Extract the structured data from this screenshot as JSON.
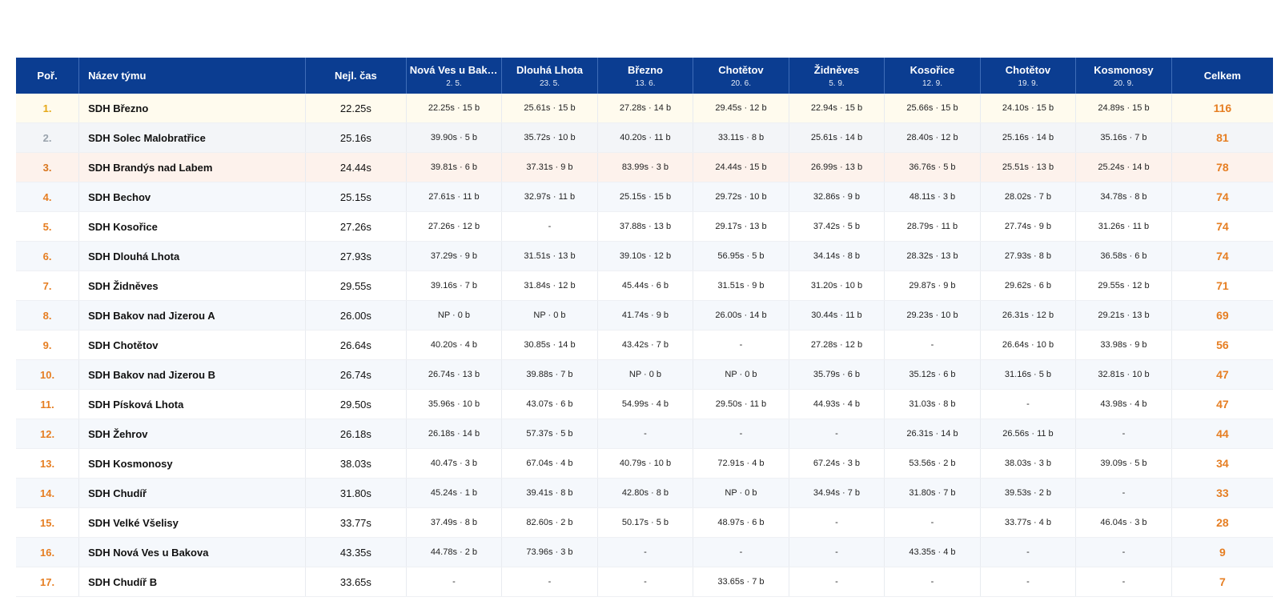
{
  "table": {
    "headers": {
      "rank": "Poř.",
      "team": "Název týmu",
      "best": "Nejl. čas",
      "total": "Celkem"
    },
    "events": [
      {
        "name": "Nová Ves u Bakova",
        "date": "2. 5."
      },
      {
        "name": "Dlouhá Lhota",
        "date": "23. 5."
      },
      {
        "name": "Březno",
        "date": "13. 6."
      },
      {
        "name": "Chotětov",
        "date": "20. 6."
      },
      {
        "name": "Židněves",
        "date": "5. 9."
      },
      {
        "name": "Kosořice",
        "date": "12. 9."
      },
      {
        "name": "Chotětov",
        "date": "19. 9."
      },
      {
        "name": "Kosmonosy",
        "date": "20. 9."
      }
    ],
    "rows": [
      {
        "rank": "1.",
        "team": "SDH Březno",
        "best": "22.25s",
        "results": [
          "22.25s · 15 b",
          "25.61s · 15 b",
          "27.28s · 14 b",
          "29.45s · 12 b",
          "22.94s · 15 b",
          "25.66s · 15 b",
          "24.10s · 15 b",
          "24.89s · 15 b"
        ],
        "total": "116"
      },
      {
        "rank": "2.",
        "team": "SDH Solec Malobratřice",
        "best": "25.16s",
        "results": [
          "39.90s · 5 b",
          "35.72s · 10 b",
          "40.20s · 11 b",
          "33.11s · 8 b",
          "25.61s · 14 b",
          "28.40s · 12 b",
          "25.16s · 14 b",
          "35.16s · 7 b"
        ],
        "total": "81"
      },
      {
        "rank": "3.",
        "team": "SDH Brandýs nad Labem",
        "best": "24.44s",
        "results": [
          "39.81s · 6 b",
          "37.31s · 9 b",
          "83.99s · 3 b",
          "24.44s · 15 b",
          "26.99s · 13 b",
          "36.76s · 5 b",
          "25.51s · 13 b",
          "25.24s · 14 b"
        ],
        "total": "78"
      },
      {
        "rank": "4.",
        "team": "SDH Bechov",
        "best": "25.15s",
        "results": [
          "27.61s · 11 b",
          "32.97s · 11 b",
          "25.15s · 15 b",
          "29.72s · 10 b",
          "32.86s · 9 b",
          "48.11s · 3 b",
          "28.02s · 7 b",
          "34.78s · 8 b"
        ],
        "total": "74"
      },
      {
        "rank": "5.",
        "team": "SDH Kosořice",
        "best": "27.26s",
        "results": [
          "27.26s · 12 b",
          "-",
          "37.88s · 13 b",
          "29.17s · 13 b",
          "37.42s · 5 b",
          "28.79s · 11 b",
          "27.74s · 9 b",
          "31.26s · 11 b"
        ],
        "total": "74"
      },
      {
        "rank": "6.",
        "team": "SDH Dlouhá Lhota",
        "best": "27.93s",
        "results": [
          "37.29s · 9 b",
          "31.51s · 13 b",
          "39.10s · 12 b",
          "56.95s · 5 b",
          "34.14s · 8 b",
          "28.32s · 13 b",
          "27.93s · 8 b",
          "36.58s · 6 b"
        ],
        "total": "74"
      },
      {
        "rank": "7.",
        "team": "SDH Židněves",
        "best": "29.55s",
        "results": [
          "39.16s · 7 b",
          "31.84s · 12 b",
          "45.44s · 6 b",
          "31.51s · 9 b",
          "31.20s · 10 b",
          "29.87s · 9 b",
          "29.62s · 6 b",
          "29.55s · 12 b"
        ],
        "total": "71"
      },
      {
        "rank": "8.",
        "team": "SDH Bakov nad Jizerou A",
        "best": "26.00s",
        "results": [
          "NP · 0 b",
          "NP · 0 b",
          "41.74s · 9 b",
          "26.00s · 14 b",
          "30.44s · 11 b",
          "29.23s · 10 b",
          "26.31s · 12 b",
          "29.21s · 13 b"
        ],
        "total": "69"
      },
      {
        "rank": "9.",
        "team": "SDH Chotětov",
        "best": "26.64s",
        "results": [
          "40.20s · 4 b",
          "30.85s · 14 b",
          "43.42s · 7 b",
          "-",
          "27.28s · 12 b",
          "-",
          "26.64s · 10 b",
          "33.98s · 9 b"
        ],
        "total": "56"
      },
      {
        "rank": "10.",
        "team": "SDH Bakov nad Jizerou B",
        "best": "26.74s",
        "results": [
          "26.74s · 13 b",
          "39.88s · 7 b",
          "NP · 0 b",
          "NP · 0 b",
          "35.79s · 6 b",
          "35.12s · 6 b",
          "31.16s · 5 b",
          "32.81s · 10 b"
        ],
        "total": "47"
      },
      {
        "rank": "11.",
        "team": "SDH Písková Lhota",
        "best": "29.50s",
        "results": [
          "35.96s · 10 b",
          "43.07s · 6 b",
          "54.99s · 4 b",
          "29.50s · 11 b",
          "44.93s · 4 b",
          "31.03s · 8 b",
          "-",
          "43.98s · 4 b"
        ],
        "total": "47"
      },
      {
        "rank": "12.",
        "team": "SDH Žehrov",
        "best": "26.18s",
        "results": [
          "26.18s · 14 b",
          "57.37s · 5 b",
          "-",
          "-",
          "-",
          "26.31s · 14 b",
          "26.56s · 11 b",
          "-"
        ],
        "total": "44"
      },
      {
        "rank": "13.",
        "team": "SDH Kosmonosy",
        "best": "38.03s",
        "results": [
          "40.47s · 3 b",
          "67.04s · 4 b",
          "40.79s · 10 b",
          "72.91s · 4 b",
          "67.24s · 3 b",
          "53.56s · 2 b",
          "38.03s · 3 b",
          "39.09s · 5 b"
        ],
        "total": "34"
      },
      {
        "rank": "14.",
        "team": "SDH Chudíř",
        "best": "31.80s",
        "results": [
          "45.24s · 1 b",
          "39.41s · 8 b",
          "42.80s · 8 b",
          "NP · 0 b",
          "34.94s · 7 b",
          "31.80s · 7 b",
          "39.53s · 2 b",
          "-"
        ],
        "total": "33"
      },
      {
        "rank": "15.",
        "team": "SDH Velké Všelisy",
        "best": "33.77s",
        "results": [
          "37.49s · 8 b",
          "82.60s · 2 b",
          "50.17s · 5 b",
          "48.97s · 6 b",
          "-",
          "-",
          "33.77s · 4 b",
          "46.04s · 3 b"
        ],
        "total": "28"
      },
      {
        "rank": "16.",
        "team": "SDH Nová Ves u Bakova",
        "best": "43.35s",
        "results": [
          "44.78s · 2 b",
          "73.96s · 3 b",
          "-",
          "-",
          "-",
          "43.35s · 4 b",
          "-",
          "-"
        ],
        "total": "9"
      },
      {
        "rank": "17.",
        "team": "SDH Chudíř B",
        "best": "33.65s",
        "results": [
          "-",
          "-",
          "-",
          "33.65s · 7 b",
          "-",
          "-",
          "-",
          "-"
        ],
        "total": "7"
      }
    ]
  },
  "colors": {
    "header_bg": "#0b3d91",
    "accent_orange": "#e67e22",
    "gold": "#e6a817",
    "silver": "#9aa3ad",
    "bronze": "#d9771f"
  }
}
